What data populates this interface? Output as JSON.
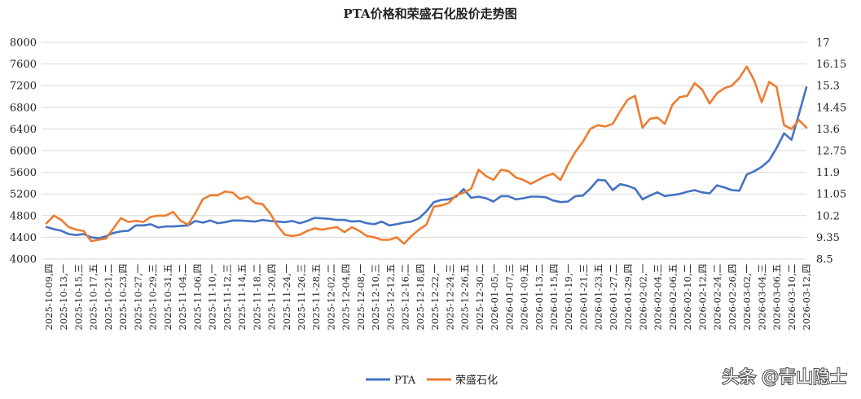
{
  "watermark": "头条 @青山隐士",
  "chart_data": {
    "type": "line",
    "title": "PTA价格和荣盛石化股价走势图",
    "y_left": {
      "min": 4000,
      "max": 8000,
      "ticks": [
        "8000",
        "7600",
        "7200",
        "6800",
        "6400",
        "6000",
        "5600",
        "5200",
        "4800",
        "4400",
        "4000"
      ]
    },
    "y_right": {
      "min": 8.5,
      "max": 17,
      "ticks": [
        "17",
        "16.15",
        "15.3",
        "14.45",
        "13.6",
        "12.75",
        "11.9",
        "11.05",
        "10.2",
        "9.35",
        "8.5"
      ]
    },
    "grid": true,
    "legend_position": "bottom",
    "x_tick_labels": [
      "2025-10-09,四",
      "2025-10-13,一",
      "2025-10-15,三",
      "2025-10-17,五",
      "2025-10-21,二",
      "2025-10-23,四",
      "2025-10-27,一",
      "2025-10-29,三",
      "2025-10-31,五",
      "2025-11-04,二",
      "2025-11-06,四",
      "2025-11-10,一",
      "2025-11-12,三",
      "2025-11-14,五",
      "2025-11-18,二",
      "2025-11-20,四",
      "2025-11-24,一",
      "2025-11-26,三",
      "2025-11-28,五",
      "2025-12-02,二",
      "2025-12-04,四",
      "2025-12-08,一",
      "2025-12-10,三",
      "2025-12-12,五",
      "2025-12-16,二",
      "2025-12-18,四",
      "2025-12-22,一",
      "2025-12-24,三",
      "2025-12-26,五",
      "2025-12-30,二",
      "2026-01-05,一",
      "2026-01-07,三",
      "2026-01-09,五",
      "2026-01-13,二",
      "2026-01-15,四",
      "2026-01-19,一",
      "2026-01-21,三",
      "2026-01-23,五",
      "2026-01-27,二",
      "2026-01-29,四",
      "2026-02-02,一",
      "2026-02-04,三",
      "2026-02-06,五",
      "2026-02-10,二",
      "2026-02-12,四",
      "2026-02-24,二",
      "2026-02-26,四",
      "2026-03-02,一",
      "2026-03-04,三",
      "2026-03-06,五",
      "2026-03-10,二",
      "2026-03-12,四"
    ],
    "series": [
      {
        "name": "PTA",
        "axis": "left",
        "color": "#4472c4",
        "values": [
          4590,
          4550,
          4520,
          4460,
          4440,
          4460,
          4400,
          4380,
          4420,
          4480,
          4510,
          4520,
          4620,
          4620,
          4640,
          4580,
          4600,
          4600,
          4610,
          4620,
          4700,
          4670,
          4710,
          4660,
          4680,
          4710,
          4710,
          4700,
          4690,
          4720,
          4700,
          4690,
          4680,
          4700,
          4660,
          4700,
          4760,
          4750,
          4740,
          4720,
          4720,
          4690,
          4700,
          4660,
          4640,
          4690,
          4620,
          4640,
          4670,
          4690,
          4750,
          4880,
          5050,
          5090,
          5100,
          5150,
          5290,
          5130,
          5150,
          5120,
          5060,
          5160,
          5160,
          5100,
          5120,
          5150,
          5150,
          5140,
          5080,
          5050,
          5060,
          5160,
          5170,
          5300,
          5460,
          5450,
          5270,
          5380,
          5350,
          5300,
          5100,
          5170,
          5230,
          5160,
          5180,
          5200,
          5240,
          5270,
          5230,
          5210,
          5360,
          5320,
          5270,
          5260,
          5560,
          5620,
          5700,
          5820,
          6050,
          6320,
          6200,
          6680,
          7170
        ]
      },
      {
        "name": "荣盛石化",
        "axis": "right",
        "color": "#ed7d31",
        "values": [
          9.9,
          10.2,
          10.03,
          9.75,
          9.65,
          9.6,
          9.2,
          9.25,
          9.3,
          9.7,
          10.1,
          9.95,
          10.0,
          9.95,
          10.15,
          10.2,
          10.2,
          10.35,
          10.0,
          9.85,
          10.3,
          10.85,
          11.0,
          11.0,
          11.15,
          11.1,
          10.85,
          10.95,
          10.7,
          10.65,
          10.3,
          9.8,
          9.45,
          9.4,
          9.45,
          9.6,
          9.7,
          9.65,
          9.7,
          9.75,
          9.55,
          9.75,
          9.6,
          9.4,
          9.35,
          9.25,
          9.25,
          9.35,
          9.1,
          9.4,
          9.65,
          9.85,
          10.55,
          10.6,
          10.7,
          11.0,
          11.1,
          11.25,
          12.0,
          11.75,
          11.6,
          12.0,
          11.95,
          11.7,
          11.6,
          11.45,
          11.6,
          11.75,
          11.85,
          11.6,
          12.2,
          12.7,
          13.1,
          13.6,
          13.75,
          13.7,
          13.8,
          14.3,
          14.75,
          14.9,
          13.65,
          14.0,
          14.05,
          13.8,
          14.55,
          14.85,
          14.9,
          15.4,
          15.15,
          14.6,
          15.0,
          15.2,
          15.3,
          15.6,
          16.05,
          15.5,
          14.65,
          15.45,
          15.25,
          13.75,
          13.6,
          13.95,
          13.65
        ]
      }
    ]
  }
}
